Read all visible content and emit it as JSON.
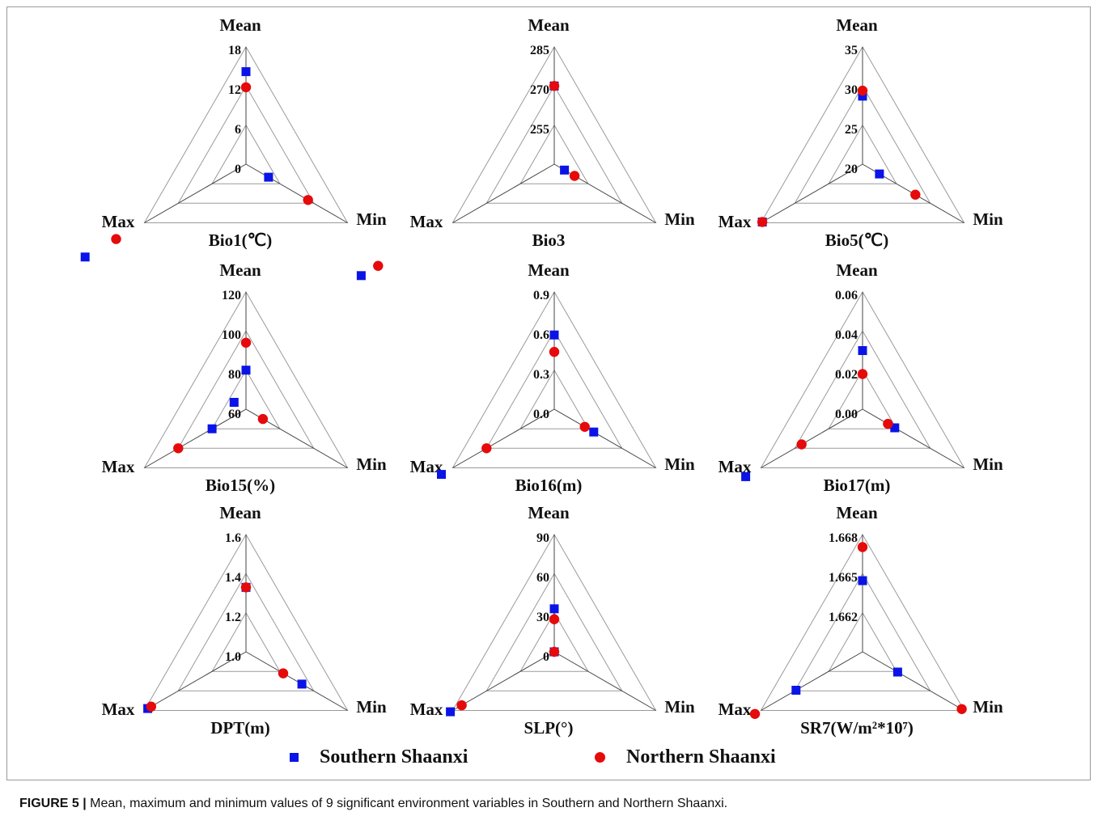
{
  "figure": {
    "caption_label": "FIGURE 5 |",
    "caption_text": " Mean, maximum and minimum values of 9 significant environment variables in Southern and Northern Shaanxi."
  },
  "colors": {
    "southern": "#0a14e6",
    "northern": "#e60a0a",
    "grid": "#9a9a9a",
    "axis": "#444444"
  },
  "legend": [
    {
      "name": "Southern Shaanxi",
      "marker": "square",
      "color": "#0a14e6"
    },
    {
      "name": "Northern Shaanxi",
      "marker": "circle",
      "color": "#e60a0a"
    }
  ],
  "chart_data": [
    {
      "type": "radar",
      "title": "Bio1(℃)",
      "axes": [
        "Mean",
        "Min",
        "Max"
      ],
      "range": [
        0,
        18
      ],
      "ticks": [
        "18",
        "12",
        "6",
        "0"
      ],
      "series": [
        {
          "name": "Southern Shaanxi",
          "values": [
            14.2,
            4.0,
            28.5
          ]
        },
        {
          "name": "Northern Shaanxi",
          "values": [
            11.8,
            11.0,
            23.0
          ]
        }
      ]
    },
    {
      "type": "radar",
      "title": "Bio3",
      "axes": [
        "Mean",
        "Min",
        "Max"
      ],
      "range": [
        255,
        285
      ],
      "ticks": [
        "285",
        "270",
        "255"
      ],
      "series": [
        {
          "name": "Southern Shaanxi",
          "values": [
            275.0,
            258.0,
            312.0
          ]
        },
        {
          "name": "Northern Shaanxi",
          "values": [
            275.0,
            261.0,
            307.0
          ]
        }
      ]
    },
    {
      "type": "radar",
      "title": "Bio5(℃)",
      "axes": [
        "Mean",
        "Min",
        "Max"
      ],
      "range": [
        20,
        35
      ],
      "ticks": [
        "35",
        "30",
        "25",
        "20"
      ],
      "series": [
        {
          "name": "Southern Shaanxi",
          "values": [
            28.7,
            22.5,
            34.8
          ]
        },
        {
          "name": "Northern Shaanxi",
          "values": [
            29.4,
            27.8,
            34.8
          ]
        }
      ]
    },
    {
      "type": "radar",
      "title": "Bio15(%)",
      "axes": [
        "Mean",
        "Min",
        "Max"
      ],
      "range": [
        60,
        120
      ],
      "ticks": [
        "120",
        "100",
        "80",
        "60"
      ],
      "series": [
        {
          "name": "Southern Shaanxi",
          "values": [
            80.0,
            53.0,
            80.0
          ]
        },
        {
          "name": "Northern Shaanxi",
          "values": [
            94.0,
            70.0,
            100.0
          ]
        }
      ]
    },
    {
      "type": "radar",
      "title": "Bio16(m)",
      "axes": [
        "Mean",
        "Min",
        "Max"
      ],
      "range": [
        0.0,
        0.9
      ],
      "ticks": [
        "0.9",
        "0.6",
        "0.3",
        "0.0"
      ],
      "series": [
        {
          "name": "Southern Shaanxi",
          "values": [
            0.57,
            0.35,
            1.0
          ]
        },
        {
          "name": "Northern Shaanxi",
          "values": [
            0.44,
            0.27,
            0.6
          ]
        }
      ]
    },
    {
      "type": "radar",
      "title": "Bio17(m)",
      "axes": [
        "Mean",
        "Min",
        "Max"
      ],
      "range": [
        0.0,
        0.06
      ],
      "ticks": [
        "0.06",
        "0.04",
        "0.02",
        "0.00"
      ],
      "series": [
        {
          "name": "Southern Shaanxi",
          "values": [
            0.03,
            0.019,
            0.069
          ]
        },
        {
          "name": "Northern Shaanxi",
          "values": [
            0.018,
            0.015,
            0.036
          ]
        }
      ]
    },
    {
      "type": "radar",
      "title": "DPT(m)",
      "axes": [
        "Mean",
        "Min",
        "Max"
      ],
      "range": [
        1.0,
        1.6
      ],
      "ticks": [
        "1.6",
        "1.4",
        "1.2",
        "1.0"
      ],
      "series": [
        {
          "name": "Southern Shaanxi",
          "values": [
            1.33,
            1.33,
            1.58
          ]
        },
        {
          "name": "Northern Shaanxi",
          "values": [
            1.33,
            1.22,
            1.56
          ]
        }
      ]
    },
    {
      "type": "radar",
      "title": "SLP(°)",
      "axes": [
        "Mean",
        "Min",
        "Max"
      ],
      "range": [
        0,
        90
      ],
      "ticks": [
        "90",
        "60",
        "30",
        "0"
      ],
      "series": [
        {
          "name": "Southern Shaanxi",
          "values": [
            33.0,
            0.0,
            92.0
          ]
        },
        {
          "name": "Northern Shaanxi",
          "values": [
            25.0,
            0.0,
            82.0
          ]
        }
      ]
    },
    {
      "type": "radar",
      "title": "SR7(W/m²*10⁷)",
      "axes": [
        "Mean",
        "Min",
        "Max"
      ],
      "range": [
        1.6596,
        1.668
      ],
      "ticks": [
        "1.668",
        "1.665",
        "1.662"
      ],
      "series": [
        {
          "name": "Southern Shaanxi",
          "values": [
            1.6647,
            1.6625,
            1.6651
          ]
        },
        {
          "name": "Northern Shaanxi",
          "values": [
            1.6671,
            1.6678,
            1.6685
          ]
        }
      ]
    }
  ]
}
